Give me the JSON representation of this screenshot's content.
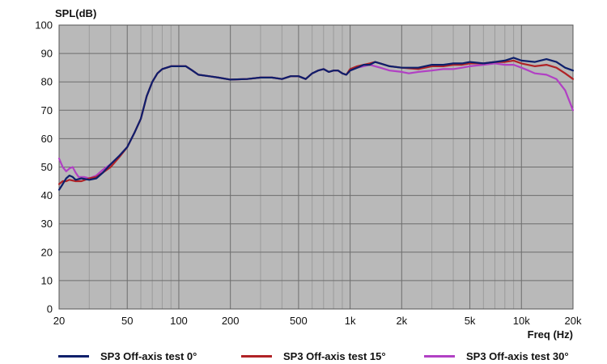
{
  "chart_data": {
    "type": "line",
    "title": "",
    "xlabel": "Freq (Hz)",
    "ylabel": "SPL(dB)",
    "xscale": "log",
    "xlim": [
      20,
      20000
    ],
    "ylim": [
      0,
      100
    ],
    "xticks": [
      {
        "value": 20,
        "label": "20"
      },
      {
        "value": 50,
        "label": "50"
      },
      {
        "value": 100,
        "label": "100"
      },
      {
        "value": 200,
        "label": "200"
      },
      {
        "value": 500,
        "label": "500"
      },
      {
        "value": 1000,
        "label": "1k"
      },
      {
        "value": 2000,
        "label": "2k"
      },
      {
        "value": 5000,
        "label": "5k"
      },
      {
        "value": 10000,
        "label": "10k"
      },
      {
        "value": 20000,
        "label": "20k"
      }
    ],
    "yticks": [
      0,
      10,
      20,
      30,
      40,
      50,
      60,
      70,
      80,
      90,
      100
    ],
    "grid": true,
    "background": "#b9b9b9",
    "legend_position": "bottom",
    "series": [
      {
        "name": "SP3 Off-axis test 0°",
        "color": "#0e1f6b",
        "points": [
          [
            20,
            42
          ],
          [
            21,
            44
          ],
          [
            22,
            46
          ],
          [
            23,
            47
          ],
          [
            24,
            46.5
          ],
          [
            25,
            45.5
          ],
          [
            27,
            46
          ],
          [
            30,
            45.5
          ],
          [
            33,
            46
          ],
          [
            36,
            48
          ],
          [
            40,
            51
          ],
          [
            45,
            54
          ],
          [
            50,
            57
          ],
          [
            55,
            62
          ],
          [
            60,
            67
          ],
          [
            65,
            75
          ],
          [
            70,
            80
          ],
          [
            75,
            83
          ],
          [
            80,
            84.5
          ],
          [
            90,
            85.5
          ],
          [
            100,
            85.5
          ],
          [
            110,
            85.5
          ],
          [
            120,
            84
          ],
          [
            130,
            82.5
          ],
          [
            150,
            82
          ],
          [
            170,
            81.5
          ],
          [
            200,
            80.8
          ],
          [
            250,
            81
          ],
          [
            300,
            81.5
          ],
          [
            350,
            81.5
          ],
          [
            400,
            81
          ],
          [
            450,
            82
          ],
          [
            500,
            82
          ],
          [
            550,
            81
          ],
          [
            600,
            83
          ],
          [
            650,
            84
          ],
          [
            700,
            84.5
          ],
          [
            750,
            83.5
          ],
          [
            800,
            84
          ],
          [
            850,
            84
          ],
          [
            900,
            83
          ],
          [
            950,
            82.5
          ],
          [
            1000,
            84
          ],
          [
            1100,
            85
          ],
          [
            1200,
            86
          ],
          [
            1300,
            86
          ],
          [
            1400,
            87
          ],
          [
            1500,
            86.5
          ],
          [
            1700,
            85.5
          ],
          [
            2000,
            85
          ],
          [
            2500,
            85
          ],
          [
            3000,
            86
          ],
          [
            3500,
            86
          ],
          [
            4000,
            86.5
          ],
          [
            4500,
            86.5
          ],
          [
            5000,
            87
          ],
          [
            6000,
            86.5
          ],
          [
            7000,
            87
          ],
          [
            8000,
            87.5
          ],
          [
            9000,
            88.5
          ],
          [
            10000,
            87.5
          ],
          [
            12000,
            87
          ],
          [
            14000,
            88
          ],
          [
            16000,
            87
          ],
          [
            18000,
            85
          ],
          [
            20000,
            84
          ]
        ]
      },
      {
        "name": "SP3 Off-axis test 15°",
        "color": "#b02226",
        "points": [
          [
            20,
            44
          ],
          [
            21,
            45
          ],
          [
            22,
            45
          ],
          [
            23,
            45.5
          ],
          [
            25,
            45
          ],
          [
            27,
            45
          ],
          [
            30,
            46
          ],
          [
            33,
            46.5
          ],
          [
            36,
            48
          ],
          [
            40,
            50
          ],
          [
            45,
            53.5
          ],
          [
            50,
            57
          ],
          [
            55,
            62
          ],
          [
            60,
            67
          ],
          [
            65,
            75
          ],
          [
            70,
            80
          ],
          [
            75,
            83
          ],
          [
            80,
            84.5
          ],
          [
            90,
            85.5
          ],
          [
            100,
            85.5
          ],
          [
            110,
            85.5
          ],
          [
            120,
            84
          ],
          [
            130,
            82.5
          ],
          [
            150,
            82
          ],
          [
            170,
            81.5
          ],
          [
            200,
            80.8
          ],
          [
            250,
            81
          ],
          [
            300,
            81.5
          ],
          [
            350,
            81.5
          ],
          [
            400,
            81
          ],
          [
            450,
            82
          ],
          [
            500,
            82
          ],
          [
            550,
            81
          ],
          [
            600,
            83
          ],
          [
            650,
            84
          ],
          [
            700,
            84.5
          ],
          [
            750,
            83.5
          ],
          [
            800,
            84
          ],
          [
            850,
            84
          ],
          [
            900,
            83
          ],
          [
            950,
            82.5
          ],
          [
            1000,
            84.5
          ],
          [
            1100,
            85.5
          ],
          [
            1200,
            86
          ],
          [
            1300,
            86.5
          ],
          [
            1400,
            87
          ],
          [
            1500,
            86.5
          ],
          [
            1700,
            85.5
          ],
          [
            2000,
            85
          ],
          [
            2500,
            84.5
          ],
          [
            3000,
            85.5
          ],
          [
            3500,
            85.5
          ],
          [
            4000,
            86
          ],
          [
            4500,
            86
          ],
          [
            5000,
            86.5
          ],
          [
            6000,
            86.5
          ],
          [
            7000,
            87
          ],
          [
            8000,
            87
          ],
          [
            9000,
            87.5
          ],
          [
            10000,
            86.5
          ],
          [
            12000,
            85.5
          ],
          [
            14000,
            86
          ],
          [
            16000,
            85
          ],
          [
            18000,
            83
          ],
          [
            20000,
            81
          ]
        ]
      },
      {
        "name": "SP3 Off-axis test 30°",
        "color": "#b140c4",
        "points": [
          [
            20,
            53
          ],
          [
            21,
            50
          ],
          [
            22,
            48.5
          ],
          [
            23,
            49.5
          ],
          [
            24,
            50
          ],
          [
            25,
            48
          ],
          [
            26,
            46.5
          ],
          [
            28,
            46.5
          ],
          [
            30,
            46
          ],
          [
            33,
            47
          ],
          [
            36,
            49
          ],
          [
            40,
            51
          ],
          [
            45,
            54
          ],
          [
            50,
            57
          ],
          [
            55,
            62
          ],
          [
            60,
            67
          ],
          [
            65,
            75
          ],
          [
            70,
            80
          ],
          [
            75,
            83
          ],
          [
            80,
            84.5
          ],
          [
            90,
            85.5
          ],
          [
            100,
            85.5
          ],
          [
            110,
            85.5
          ],
          [
            120,
            84
          ],
          [
            130,
            82.5
          ],
          [
            150,
            82
          ],
          [
            170,
            81.5
          ],
          [
            200,
            80.8
          ],
          [
            250,
            81
          ],
          [
            300,
            81.5
          ],
          [
            350,
            81.5
          ],
          [
            400,
            81
          ],
          [
            450,
            82
          ],
          [
            500,
            82
          ],
          [
            550,
            81
          ],
          [
            600,
            83
          ],
          [
            650,
            84
          ],
          [
            700,
            84.5
          ],
          [
            750,
            83.5
          ],
          [
            800,
            84
          ],
          [
            850,
            84
          ],
          [
            900,
            83
          ],
          [
            950,
            82.5
          ],
          [
            1000,
            84
          ],
          [
            1100,
            85
          ],
          [
            1200,
            85.5
          ],
          [
            1300,
            86
          ],
          [
            1400,
            85.5
          ],
          [
            1500,
            85
          ],
          [
            1700,
            84
          ],
          [
            2000,
            83.5
          ],
          [
            2200,
            83
          ],
          [
            2500,
            83.5
          ],
          [
            3000,
            84
          ],
          [
            3500,
            84.5
          ],
          [
            4000,
            84.5
          ],
          [
            4500,
            85
          ],
          [
            5000,
            85.5
          ],
          [
            6000,
            86
          ],
          [
            7000,
            86.5
          ],
          [
            8000,
            86
          ],
          [
            9000,
            86
          ],
          [
            10000,
            85
          ],
          [
            11000,
            84
          ],
          [
            12000,
            83
          ],
          [
            14000,
            82.5
          ],
          [
            16000,
            81
          ],
          [
            18000,
            77
          ],
          [
            20000,
            70
          ]
        ]
      }
    ]
  }
}
